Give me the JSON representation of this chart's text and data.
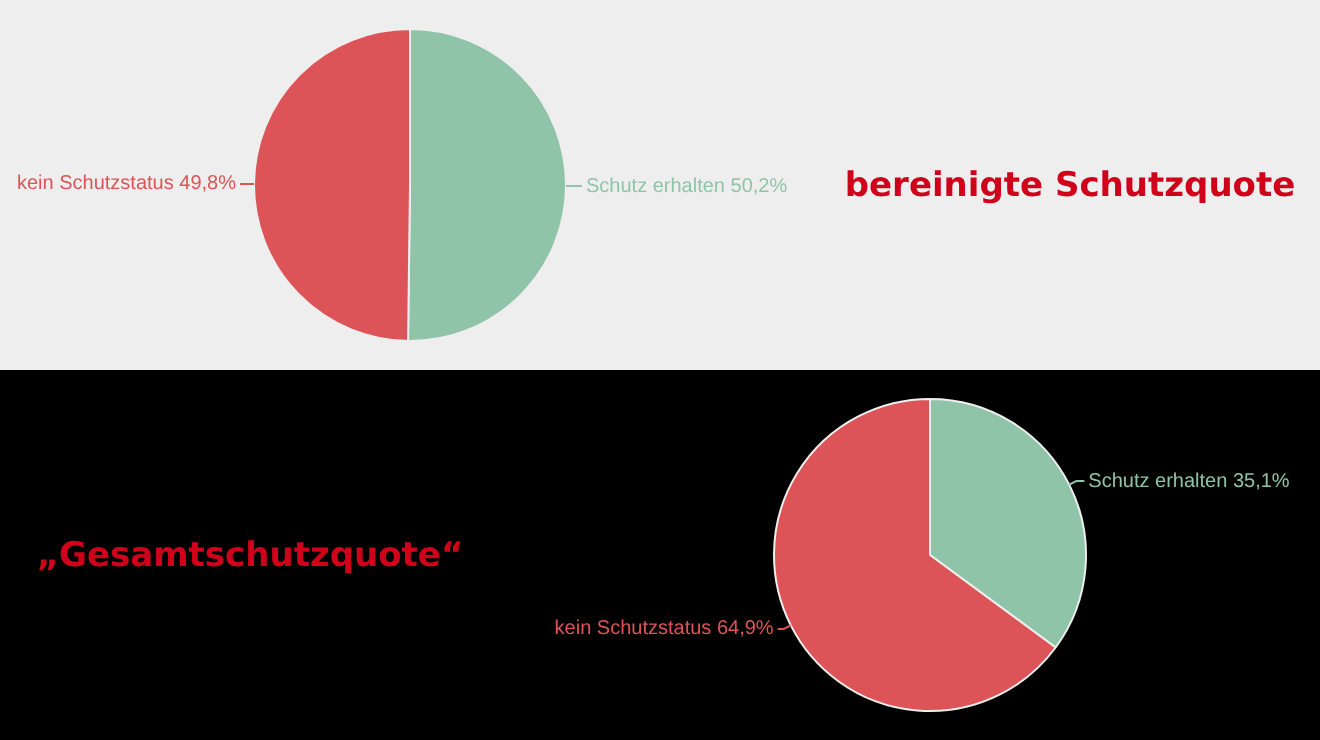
{
  "chart_data": [
    {
      "type": "pie",
      "title": "bereinigte Schutzquote",
      "categories": [
        "Schutz erhalten",
        "kein Schutzstatus"
      ],
      "values": [
        50.2,
        49.8
      ],
      "value_labels": [
        "50,2%",
        "49,8%"
      ],
      "colors": [
        "#8fc4a9",
        "#dc5457"
      ]
    },
    {
      "type": "pie",
      "title": "„Gesamtschutzquote“",
      "categories": [
        "Schutz erhalten",
        "kein Schutzstatus"
      ],
      "values": [
        35.1,
        64.9
      ],
      "value_labels": [
        "35,1%",
        "64,9%"
      ],
      "colors": [
        "#8fc4a9",
        "#dc5457"
      ]
    }
  ]
}
